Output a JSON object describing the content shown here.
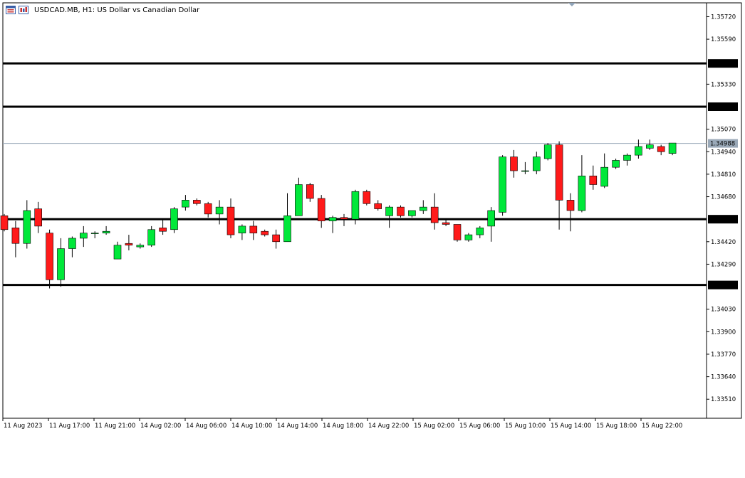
{
  "window": {
    "title": "USDCAD.MB, H1:  US Dollar vs Canadian Dollar",
    "icons": [
      "bar-chart-icon",
      "indicators-icon"
    ]
  },
  "colors": {
    "bull": "#00e83a",
    "bear": "#ff1a1a",
    "level_line": "#000000",
    "price_line": "#9aa9b8",
    "price_label_bg": "#9aa9b8",
    "axis": "#000000",
    "background": "#ffffff"
  },
  "chart_data": {
    "type": "candlestick",
    "symbol": "USDCAD.MB",
    "timeframe": "H1",
    "ylim": [
      1.334,
      1.358
    ],
    "y_ticks": [
      1.3572,
      1.3559,
      1.3533,
      1.3507,
      1.3494,
      1.3481,
      1.3468,
      1.3442,
      1.3429,
      1.3403,
      1.339,
      1.3377,
      1.3364,
      1.3351
    ],
    "y_tick_labels": [
      "1.35720",
      "1.35590",
      "1.35330",
      "1.35070",
      "1.34940",
      "1.34810",
      "1.34680",
      "1.34420",
      "1.34290",
      "1.34030",
      "1.33900",
      "1.33770",
      "1.33640",
      "1.33510"
    ],
    "horizontal_levels": [
      {
        "value": 1.3545,
        "label": "1.35450"
      },
      {
        "value": 1.352,
        "label": "1.35200"
      },
      {
        "value": 1.3455,
        "label": "1.34550"
      },
      {
        "value": 1.3417,
        "label": "1.34170"
      }
    ],
    "current_price": {
      "value": 1.34988,
      "label": "1.34988"
    },
    "x_labels": [
      "11 Aug 2023",
      "11 Aug 17:00",
      "11 Aug 21:00",
      "14 Aug 02:00",
      "14 Aug 06:00",
      "14 Aug 10:00",
      "14 Aug 14:00",
      "14 Aug 18:00",
      "14 Aug 22:00",
      "15 Aug 02:00",
      "15 Aug 06:00",
      "15 Aug 10:00",
      "15 Aug 14:00",
      "15 Aug 18:00",
      "15 Aug 22:00"
    ],
    "candles": [
      [
        1.3457,
        1.3458,
        1.3448,
        1.3449
      ],
      [
        1.345,
        1.3454,
        1.3433,
        1.3441
      ],
      [
        1.3441,
        1.3466,
        1.3438,
        1.346
      ],
      [
        1.3461,
        1.3465,
        1.3447,
        1.3451
      ],
      [
        1.3447,
        1.3449,
        1.3415,
        1.342
      ],
      [
        1.342,
        1.3444,
        1.3416,
        1.3438
      ],
      [
        1.3438,
        1.3445,
        1.3433,
        1.3444
      ],
      [
        1.3444,
        1.3451,
        1.3439,
        1.3447
      ],
      [
        1.3447,
        1.3448,
        1.3444,
        1.3447
      ],
      [
        1.3447,
        1.3451,
        1.3446,
        1.3448
      ],
      [
        1.3432,
        1.3442,
        1.3432,
        1.344
      ],
      [
        1.3441,
        1.3446,
        1.3437,
        1.344
      ],
      [
        1.3439,
        1.3441,
        1.3438,
        1.344
      ],
      [
        1.344,
        1.3451,
        1.3439,
        1.3449
      ],
      [
        1.345,
        1.3455,
        1.3446,
        1.3448
      ],
      [
        1.3449,
        1.3462,
        1.3447,
        1.3461
      ],
      [
        1.3462,
        1.3469,
        1.346,
        1.3466
      ],
      [
        1.3466,
        1.3467,
        1.3463,
        1.3464
      ],
      [
        1.3464,
        1.3465,
        1.3456,
        1.3458
      ],
      [
        1.3458,
        1.3466,
        1.3452,
        1.3462
      ],
      [
        1.3462,
        1.3467,
        1.3444,
        1.3446
      ],
      [
        1.3447,
        1.3452,
        1.3443,
        1.3451
      ],
      [
        1.3451,
        1.3454,
        1.3443,
        1.3447
      ],
      [
        1.3448,
        1.3449,
        1.3445,
        1.3446
      ],
      [
        1.3446,
        1.3449,
        1.3438,
        1.3442
      ],
      [
        1.3442,
        1.347,
        1.3442,
        1.3457
      ],
      [
        1.3457,
        1.3479,
        1.3457,
        1.3475
      ],
      [
        1.3475,
        1.3476,
        1.3465,
        1.3467
      ],
      [
        1.3467,
        1.3469,
        1.345,
        1.3454
      ],
      [
        1.3454,
        1.3457,
        1.3447,
        1.3456
      ],
      [
        1.3456,
        1.3458,
        1.3451,
        1.3455
      ],
      [
        1.3455,
        1.3472,
        1.3452,
        1.3471
      ],
      [
        1.3471,
        1.3472,
        1.3463,
        1.3464
      ],
      [
        1.3464,
        1.3466,
        1.346,
        1.3461
      ],
      [
        1.3457,
        1.3463,
        1.345,
        1.3462
      ],
      [
        1.3462,
        1.3463,
        1.3456,
        1.3457
      ],
      [
        1.3457,
        1.346,
        1.3456,
        1.346
      ],
      [
        1.346,
        1.3466,
        1.3458,
        1.3462
      ],
      [
        1.3462,
        1.347,
        1.3449,
        1.3453
      ],
      [
        1.3453,
        1.3455,
        1.3451,
        1.3452
      ],
      [
        1.3452,
        1.3452,
        1.3442,
        1.3443
      ],
      [
        1.3443,
        1.3447,
        1.3442,
        1.3446
      ],
      [
        1.3446,
        1.3451,
        1.3444,
        1.345
      ],
      [
        1.3451,
        1.3462,
        1.3442,
        1.346
      ],
      [
        1.3459,
        1.3492,
        1.3457,
        1.3491
      ],
      [
        1.3491,
        1.3495,
        1.3479,
        1.3483
      ],
      [
        1.3483,
        1.3488,
        1.3481,
        1.3483
      ],
      [
        1.3483,
        1.3494,
        1.3481,
        1.3491
      ],
      [
        1.349,
        1.3499,
        1.3489,
        1.3498
      ],
      [
        1.3498,
        1.35,
        1.3449,
        1.3466
      ],
      [
        1.3466,
        1.347,
        1.3448,
        1.346
      ],
      [
        1.346,
        1.3492,
        1.3459,
        1.348
      ],
      [
        1.348,
        1.3486,
        1.3472,
        1.3475
      ],
      [
        1.3474,
        1.3493,
        1.3473,
        1.3485
      ],
      [
        1.3485,
        1.349,
        1.3484,
        1.3489
      ],
      [
        1.3489,
        1.3493,
        1.3486,
        1.3492
      ],
      [
        1.3492,
        1.3501,
        1.349,
        1.3497
      ],
      [
        1.3496,
        1.3501,
        1.3495,
        1.3498
      ],
      [
        1.3497,
        1.3498,
        1.3492,
        1.3494
      ],
      [
        1.3493,
        1.3499,
        1.3492,
        1.3499
      ]
    ]
  }
}
